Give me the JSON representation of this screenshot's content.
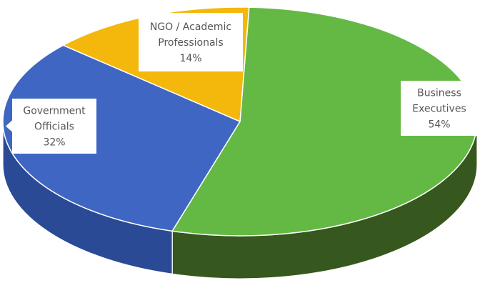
{
  "chart_data": {
    "type": "pie",
    "style": "3d",
    "slices": [
      {
        "category": "Business Executives",
        "label_lines": [
          "Business",
          "Executives"
        ],
        "value": 54,
        "value_label": "54%",
        "color": "#63b944",
        "side_color": "#36571e"
      },
      {
        "category": "Government Officials",
        "label_lines": [
          "Government",
          "Officials"
        ],
        "value": 32,
        "value_label": "32%",
        "color": "#3f66c3",
        "side_color": "#2b4a95"
      },
      {
        "category": "NGO / Academic Professionals",
        "label_lines": [
          "NGO / Academic",
          "Professionals"
        ],
        "value": 14,
        "value_label": "14%",
        "color": "#f4b70c",
        "side_color": "#b88807"
      }
    ],
    "title": "",
    "legend": "none"
  }
}
